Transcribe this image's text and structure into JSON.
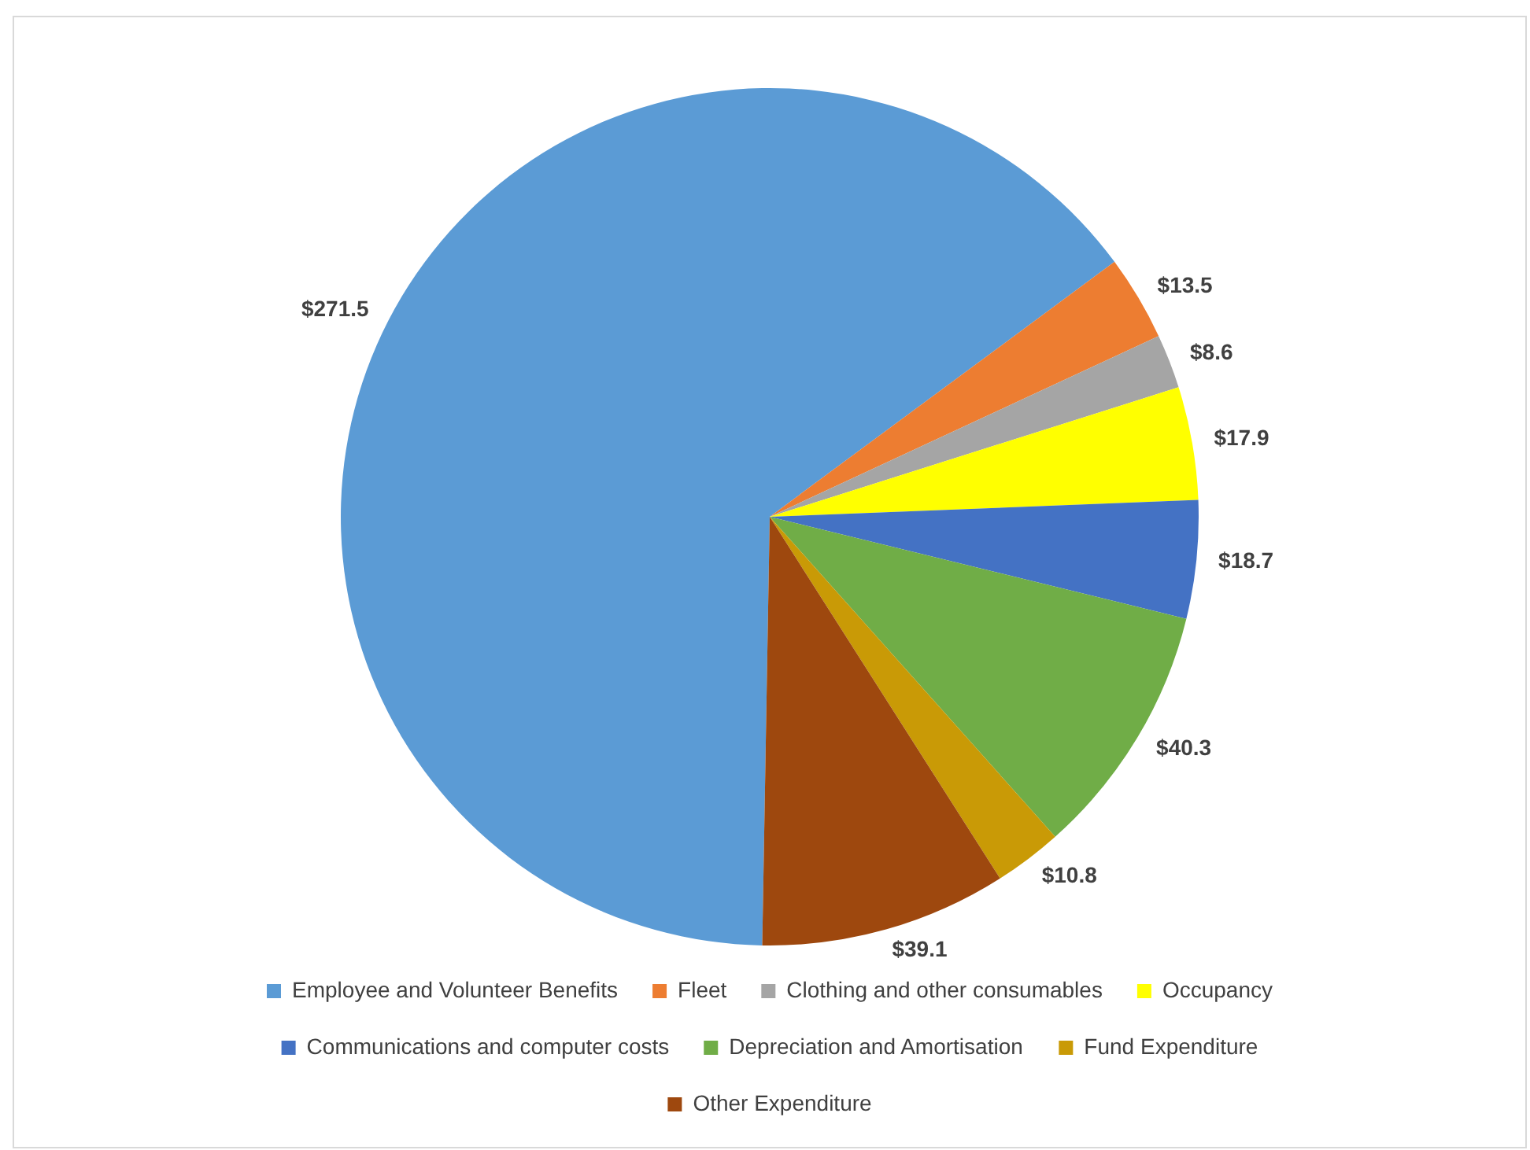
{
  "chart_data": {
    "type": "pie",
    "categories": [
      "Employee and Volunteer Benefits",
      "Fleet",
      "Clothing and other consumables",
      "Occupancy",
      "Communications and computer costs",
      "Depreciation and Amortisation",
      "Fund Expenditure",
      "Other Expenditure"
    ],
    "values": [
      271.5,
      13.5,
      8.6,
      17.9,
      18.7,
      40.3,
      10.8,
      39.1
    ],
    "value_labels": [
      "$271.5",
      "$13.5",
      "$8.6",
      "$17.9",
      "$18.7",
      "$40.3",
      "$10.8",
      "$39.1"
    ],
    "colors": [
      "#5b9bd5",
      "#ed7d31",
      "#a5a5a5",
      "#ffff00",
      "#4472c4",
      "#70ad47",
      "#c99a06",
      "#9e480e"
    ],
    "legend": "bottom"
  }
}
